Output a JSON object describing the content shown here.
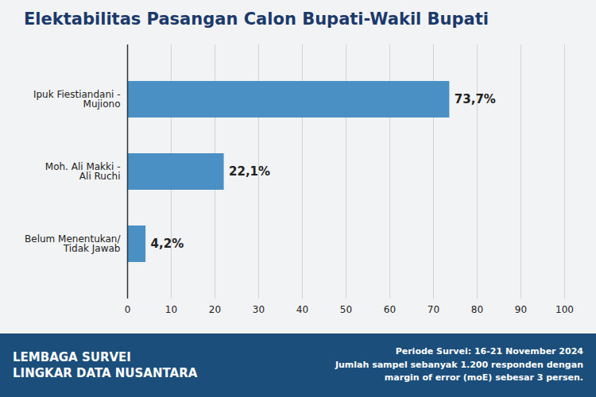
{
  "chart_data": {
    "type": "bar",
    "orientation": "horizontal",
    "title": "Elektabilitas Pasangan Calon Bupati-Wakil Bupati",
    "categories": [
      "Belum Menentukan/\nTidak Jawab",
      "Moh. Ali Makki -\nAli Ruchi",
      "Ipuk Fiestiandani -\nMujiono"
    ],
    "values": [
      4.2,
      22.1,
      73.7
    ],
    "value_labels": [
      "4,2%",
      "22,1%",
      "73,7%"
    ],
    "data_labels": true,
    "color": "#4A90C4",
    "xlim": [
      0,
      100
    ],
    "xticks": [
      0,
      10,
      20,
      30,
      40,
      50,
      60,
      70,
      80,
      90,
      100
    ],
    "grid": true,
    "annotations": [
      "LEMBAGA SURVEI",
      "LINGKAR DATA NUSANTARA",
      "Periode Survei: 16-21 November 2024\nJumlah sampel sebanyak 1.200 responden dengan\nmargin of error (moE) sebesar 3 persen."
    ]
  }
}
